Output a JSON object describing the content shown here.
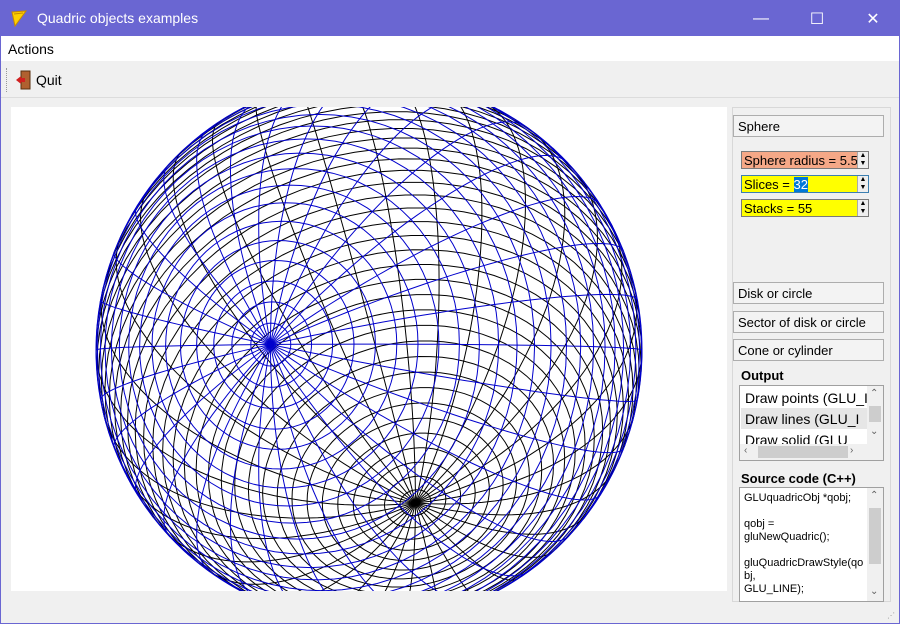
{
  "window": {
    "title": "Quadric objects examples",
    "minimize": "—",
    "maximize": "☐",
    "close": "✕"
  },
  "menu": {
    "actions": "Actions"
  },
  "toolbar": {
    "quit": "Quit"
  },
  "panel": {
    "sphere": "Sphere",
    "sphere_radius": "Sphere radius = 5.5",
    "slices_prefix": "Slices = ",
    "slices_value": "32",
    "stacks": "Stacks = 55",
    "disk": "Disk or circle",
    "sector": "Sector of disk or circle",
    "cone": "Cone or cylinder",
    "output_label": "Output",
    "output_items": [
      "Draw points (GLU_I",
      "Draw lines    (GLU_I",
      "Draw solid   (GLU"
    ],
    "source_label": "Source code (C++)",
    "source_code": "GLUquadricObj *qobj;\n\nqobj =\ngluNewQuadric();\n\ngluQuadricDrawStyle(qobj,\nGLU_LINE);"
  },
  "colors": {
    "titlebar": "#6a66d2",
    "radius_bg": "#f5a887",
    "spin_bg": "#ffff00",
    "wire_blue": "#0000cc",
    "wire_black": "#000000"
  }
}
